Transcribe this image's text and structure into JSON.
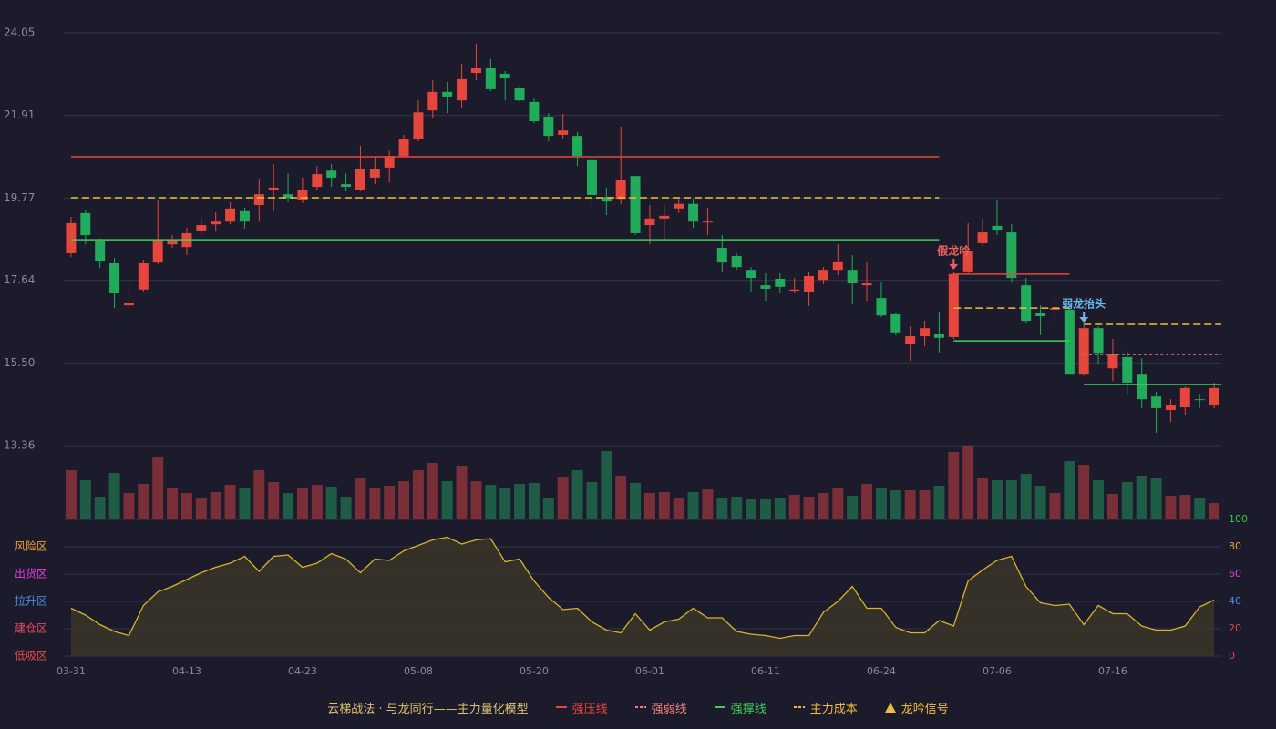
{
  "chart_data": [
    {
      "type": "candlestick",
      "title": "云梯战法 · 与龙同行——主力量化模型",
      "title_color": "#e0c070",
      "up_color": "#e8453c",
      "down_color": "#1fad5c",
      "categories": [
        "03-31",
        null,
        null,
        null,
        null,
        null,
        null,
        null,
        "04-13",
        null,
        null,
        null,
        null,
        null,
        null,
        null,
        "04-23",
        null,
        null,
        null,
        null,
        null,
        null,
        null,
        "05-08",
        null,
        null,
        null,
        null,
        null,
        null,
        null,
        "05-20",
        null,
        null,
        null,
        null,
        null,
        null,
        null,
        "06-01",
        null,
        null,
        null,
        null,
        null,
        null,
        null,
        "06-11",
        null,
        null,
        null,
        null,
        null,
        null,
        null,
        "06-24",
        null,
        null,
        null,
        null,
        null,
        null,
        null,
        "07-06",
        null,
        null,
        null,
        null,
        null,
        null,
        null,
        "07-16",
        null,
        null,
        null,
        null,
        null,
        null,
        null
      ],
      "open": [
        18.34,
        19.38,
        18.67,
        18.08,
        16.99,
        17.4,
        18.1,
        18.57,
        18.5,
        18.93,
        19.09,
        19.16,
        19.43,
        19.59,
        19.99,
        19.87,
        19.71,
        20.06,
        20.48,
        20.13,
        19.99,
        20.3,
        20.56,
        20.86,
        21.31,
        22.04,
        22.52,
        22.3,
        23.01,
        23.13,
        22.99,
        22.61,
        22.26,
        21.88,
        21.41,
        21.38,
        20.75,
        19.8,
        19.75,
        20.34,
        19.07,
        19.24,
        19.5,
        19.62,
        19.14,
        18.48,
        18.27,
        17.91,
        17.51,
        17.68,
        17.37,
        17.35,
        17.65,
        17.91,
        17.91,
        17.51,
        17.18,
        16.76,
        15.98,
        16.19,
        16.24,
        16.17,
        17.87,
        18.6,
        19.05,
        18.88,
        17.51,
        16.8,
        16.88,
        16.88,
        15.22,
        16.4,
        15.36,
        15.65,
        15.22,
        14.63,
        14.28,
        14.35,
        14.56,
        14.42
      ],
      "high": [
        19.28,
        19.47,
        18.72,
        18.22,
        17.63,
        18.17,
        19.71,
        18.81,
        19.0,
        19.24,
        19.4,
        19.66,
        19.52,
        20.27,
        20.65,
        20.41,
        20.3,
        20.6,
        20.65,
        20.41,
        21.12,
        20.84,
        21.0,
        21.41,
        22.3,
        22.82,
        22.78,
        23.25,
        23.77,
        23.37,
        23.06,
        22.66,
        22.35,
        21.97,
        21.95,
        21.48,
        20.79,
        20.04,
        21.62,
        20.34,
        19.59,
        19.59,
        19.75,
        19.75,
        19.52,
        18.81,
        18.34,
        17.98,
        17.82,
        17.82,
        17.7,
        17.87,
        17.98,
        18.57,
        18.29,
        18.1,
        17.58,
        16.8,
        16.45,
        16.59,
        16.83,
        17.87,
        19.12,
        19.24,
        19.71,
        19.09,
        17.7,
        16.99,
        17.35,
        16.92,
        16.5,
        16.45,
        16.12,
        15.81,
        15.62,
        14.75,
        14.56,
        14.89,
        14.7,
        14.99
      ],
      "low": [
        18.24,
        18.57,
        17.96,
        16.92,
        16.85,
        17.35,
        18.06,
        18.48,
        18.29,
        18.81,
        18.9,
        19.09,
        18.98,
        19.16,
        19.43,
        19.66,
        19.64,
        19.99,
        20.06,
        19.94,
        19.94,
        20.13,
        20.18,
        20.82,
        21.24,
        21.83,
        21.97,
        22.12,
        22.82,
        22.54,
        22.3,
        22.26,
        21.71,
        21.24,
        21.31,
        20.6,
        19.52,
        19.33,
        19.61,
        18.81,
        18.57,
        18.69,
        19.38,
        19.0,
        18.81,
        17.87,
        17.91,
        17.35,
        17.11,
        17.3,
        17.3,
        16.97,
        17.54,
        17.77,
        17.02,
        17.11,
        16.69,
        16.22,
        15.55,
        15.93,
        15.77,
        16.12,
        17.82,
        18.53,
        18.81,
        17.58,
        16.54,
        16.22,
        16.45,
        15.22,
        15.17,
        15.46,
        15.03,
        14.7,
        14.33,
        13.69,
        13.97,
        14.16,
        14.33,
        14.33
      ],
      "close": [
        19.12,
        18.81,
        18.15,
        17.32,
        17.06,
        18.08,
        18.69,
        18.69,
        18.86,
        19.07,
        19.16,
        19.5,
        19.16,
        19.87,
        20.04,
        19.78,
        19.99,
        20.39,
        20.3,
        20.06,
        20.51,
        20.53,
        20.86,
        21.31,
        21.99,
        22.52,
        22.4,
        22.85,
        23.13,
        22.59,
        22.87,
        22.3,
        21.76,
        21.38,
        21.52,
        20.86,
        19.85,
        19.68,
        20.23,
        18.86,
        19.24,
        19.31,
        19.62,
        19.16,
        19.16,
        18.1,
        17.98,
        17.7,
        17.42,
        17.47,
        17.4,
        17.75,
        17.91,
        18.13,
        17.56,
        17.56,
        16.73,
        16.29,
        16.19,
        16.4,
        16.15,
        17.8,
        18.41,
        18.88,
        18.95,
        17.7,
        16.59,
        16.71,
        16.92,
        15.22,
        16.4,
        15.76,
        15.74,
        14.99,
        14.56,
        14.33,
        14.42,
        14.85,
        14.54,
        14.85
      ],
      "ylim": [
        13.36,
        24.05
      ],
      "yticks": [
        13.36,
        {
          "value": 15.5,
          "label": "15.50"
        },
        17.64,
        19.77,
        21.91,
        24.05
      ],
      "grid": true,
      "series": [
        {
          "name": "强压线",
          "color": "#e8453c",
          "style": "solid",
          "values": [
            20.84,
            20.84,
            20.84,
            20.84,
            20.84,
            20.84,
            20.84,
            20.84,
            20.84,
            20.84,
            20.84,
            20.84,
            20.84,
            20.84,
            20.84,
            20.84,
            20.84,
            20.84,
            20.84,
            20.84,
            20.84,
            20.84,
            20.84,
            20.84,
            20.84,
            20.84,
            20.84,
            20.84,
            20.84,
            20.84,
            20.84,
            20.84,
            20.84,
            20.84,
            20.84,
            20.84,
            20.84,
            20.84,
            20.84,
            20.84,
            20.84,
            20.84,
            20.84,
            20.84,
            20.84,
            20.84,
            20.84,
            20.84,
            20.84,
            20.84,
            20.84,
            20.84,
            20.84,
            20.84,
            20.84,
            20.84,
            20.84,
            20.84,
            20.84,
            20.84,
            20.84,
            17.8,
            17.8,
            17.8,
            17.8,
            17.8,
            17.8,
            17.8,
            17.8,
            17.8,
            null,
            null,
            null,
            null,
            null,
            null,
            null,
            null,
            null,
            null
          ]
        },
        {
          "name": "强弱线",
          "color": "#f08080",
          "style": "dotted",
          "values": [
            null,
            null,
            null,
            null,
            null,
            null,
            null,
            null,
            null,
            null,
            null,
            null,
            null,
            null,
            null,
            null,
            null,
            null,
            null,
            null,
            null,
            null,
            null,
            null,
            null,
            null,
            null,
            null,
            null,
            null,
            null,
            null,
            null,
            null,
            null,
            null,
            null,
            null,
            null,
            null,
            null,
            null,
            null,
            null,
            null,
            null,
            null,
            null,
            null,
            null,
            null,
            null,
            null,
            null,
            null,
            null,
            null,
            null,
            null,
            null,
            null,
            null,
            null,
            null,
            null,
            null,
            null,
            null,
            null,
            null,
            15.72,
            15.72,
            15.72,
            15.72,
            15.72,
            15.72,
            15.72,
            15.72,
            15.72,
            15.72
          ]
        },
        {
          "name": "强撑线",
          "color": "#3ecf5a",
          "style": "solid",
          "values": [
            18.69,
            18.69,
            18.69,
            18.69,
            18.69,
            18.69,
            18.69,
            18.69,
            18.69,
            18.69,
            18.69,
            18.69,
            18.69,
            18.69,
            18.69,
            18.69,
            18.69,
            18.69,
            18.69,
            18.69,
            18.69,
            18.69,
            18.69,
            18.69,
            18.69,
            18.69,
            18.69,
            18.69,
            18.69,
            18.69,
            18.69,
            18.69,
            18.69,
            18.69,
            18.69,
            18.69,
            18.69,
            18.69,
            18.69,
            18.69,
            18.69,
            18.69,
            18.69,
            18.69,
            18.69,
            18.69,
            18.69,
            18.69,
            18.69,
            18.69,
            18.69,
            18.69,
            18.69,
            18.69,
            18.69,
            18.69,
            18.69,
            18.69,
            18.69,
            18.69,
            18.69,
            16.07,
            16.07,
            16.07,
            16.07,
            16.07,
            16.07,
            16.07,
            16.07,
            16.07,
            14.94,
            14.94,
            14.94,
            14.94,
            14.94,
            14.94,
            14.94,
            14.94,
            14.94,
            14.94
          ]
        },
        {
          "name": "主力成本",
          "color": "#f0c030",
          "style": "dashed",
          "values": [
            19.78,
            19.78,
            19.78,
            19.78,
            19.78,
            19.78,
            19.78,
            19.78,
            19.78,
            19.78,
            19.78,
            19.78,
            19.78,
            19.78,
            19.78,
            19.78,
            19.78,
            19.78,
            19.78,
            19.78,
            19.78,
            19.78,
            19.78,
            19.78,
            19.78,
            19.78,
            19.78,
            19.78,
            19.78,
            19.78,
            19.78,
            19.78,
            19.78,
            19.78,
            19.78,
            19.78,
            19.78,
            19.78,
            19.78,
            19.78,
            19.78,
            19.78,
            19.78,
            19.78,
            19.78,
            19.78,
            19.78,
            19.78,
            19.78,
            19.78,
            19.78,
            19.78,
            19.78,
            19.78,
            19.78,
            19.78,
            19.78,
            19.78,
            19.78,
            19.78,
            19.78,
            16.92,
            16.92,
            16.92,
            16.92,
            16.92,
            16.92,
            16.92,
            16.92,
            16.92,
            16.5,
            16.5,
            16.5,
            16.5,
            16.5,
            16.5,
            16.5,
            16.5,
            16.5,
            16.5
          ]
        }
      ],
      "signal": {
        "name": "龙吟信号",
        "color": "#f0c030"
      },
      "annotations": [
        {
          "text": "假龙吟",
          "index": 61,
          "color": "#f06060"
        },
        {
          "text": "弱龙抬头",
          "index": 70,
          "color": "#6ab8f0"
        }
      ]
    },
    {
      "type": "bar",
      "values": [
        54,
        43,
        25,
        51,
        29,
        39,
        69,
        34,
        29,
        24,
        30,
        38,
        35,
        54,
        41,
        29,
        34,
        38,
        36,
        25,
        45,
        35,
        37,
        42,
        54,
        62,
        42,
        59,
        42,
        38,
        35,
        39,
        40,
        23,
        46,
        54,
        41,
        75,
        48,
        40,
        29,
        30,
        24,
        30,
        33,
        24,
        25,
        22,
        22,
        23,
        27,
        25,
        29,
        34,
        26,
        39,
        35,
        32,
        32,
        32,
        37,
        74,
        81,
        45,
        43,
        43,
        50,
        37,
        29,
        64,
        60,
        43,
        28,
        41,
        48,
        45,
        26,
        27,
        23,
        18
      ],
      "up_color": "#7a2e37",
      "down_color": "#1e5c46",
      "ylim": [
        0,
        81
      ]
    },
    {
      "type": "line",
      "values": [
        35,
        30,
        23,
        18,
        15,
        37,
        47,
        51,
        56,
        61,
        65,
        68,
        73,
        62,
        73,
        74,
        65,
        68,
        75,
        71,
        61,
        71,
        70,
        77,
        81,
        85,
        87,
        82,
        85,
        86,
        69,
        71,
        55,
        43,
        34,
        35,
        25,
        19,
        17,
        31,
        19,
        25,
        27,
        35,
        28,
        28,
        18,
        16,
        15,
        13,
        15,
        15,
        32,
        40,
        51,
        35,
        35,
        21,
        17,
        17,
        26,
        22,
        55,
        63,
        70,
        73,
        51,
        39,
        37,
        38,
        23,
        37,
        31,
        31,
        22,
        19,
        19,
        22,
        36,
        41
      ],
      "color": "#d8b428",
      "fill": "#3a3428",
      "ylim": [
        0,
        100
      ],
      "yticks": [
        0,
        20,
        40,
        60,
        80,
        100
      ],
      "ytick_colors": [
        "#e84848",
        "#e84848",
        "#4a90e2",
        "#e040e0",
        "#f0a030",
        "#2ecc40"
      ],
      "grid": true,
      "zones": [
        {
          "label": "风险区",
          "value": 80,
          "color": "#f0a030"
        },
        {
          "label": "出货区",
          "value": 60,
          "color": "#e040e0"
        },
        {
          "label": "拉升区",
          "value": 40,
          "color": "#4a90e2"
        },
        {
          "label": "建仓区",
          "value": 20,
          "color": "#e84860"
        },
        {
          "label": "低吸区",
          "value": 0,
          "color": "#e84848"
        }
      ]
    }
  ]
}
